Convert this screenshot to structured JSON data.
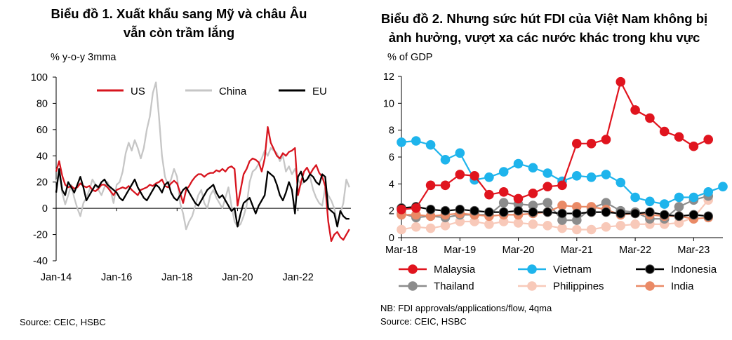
{
  "colors": {
    "us": "#d7141e",
    "china": "#c6c6c6",
    "eu": "#000000",
    "malaysia": "#e0141e",
    "vietnam": "#1eb4ec",
    "indonesia": "#000000",
    "thailand": "#8c8c8c",
    "philippines": "#f8c9b9",
    "india": "#ea8a66"
  },
  "chart_data": [
    {
      "type": "line",
      "title_lines": [
        "Biểu đồ 1. Xuất khẩu sang Mỹ và châu Âu",
        "vẫn còn trầm lắng"
      ],
      "ylabel": "% y-o-y 3mma",
      "ylim": [
        -40,
        100
      ],
      "yticks": [
        "100",
        "80",
        "60",
        "40",
        "20",
        "0",
        "-20",
        "-40"
      ],
      "xlim": [
        2014.0,
        2023.75
      ],
      "xtick_labels": [
        "Jan-14",
        "Jan-16",
        "Jan-18",
        "Jan-20",
        "Jan-22"
      ],
      "legend": [
        "US",
        "China",
        "EU"
      ],
      "legend_position": "top",
      "source": "Source: CEIC, HSBC",
      "series": [
        {
          "name": "US",
          "color_key": "us",
          "x": [
            2014.0,
            2014.1,
            2014.2,
            2014.3,
            2014.4,
            2014.5,
            2014.6,
            2014.7,
            2014.8,
            2014.9,
            2015.0,
            2015.1,
            2015.2,
            2015.3,
            2015.4,
            2015.5,
            2015.6,
            2015.7,
            2015.8,
            2015.9,
            2016.0,
            2016.1,
            2016.2,
            2016.3,
            2016.4,
            2016.5,
            2016.6,
            2016.7,
            2016.8,
            2016.9,
            2017.0,
            2017.1,
            2017.2,
            2017.3,
            2017.4,
            2017.5,
            2017.6,
            2017.7,
            2017.8,
            2017.9,
            2018.0,
            2018.1,
            2018.2,
            2018.3,
            2018.4,
            2018.5,
            2018.6,
            2018.7,
            2018.8,
            2018.9,
            2019.0,
            2019.1,
            2019.2,
            2019.3,
            2019.4,
            2019.5,
            2019.6,
            2019.7,
            2019.8,
            2019.9,
            2020.0,
            2020.1,
            2020.2,
            2020.3,
            2020.4,
            2020.5,
            2020.6,
            2020.7,
            2020.8,
            2020.9,
            2021.0,
            2021.1,
            2021.2,
            2021.3,
            2021.4,
            2021.5,
            2021.6,
            2021.7,
            2021.8,
            2021.9,
            2022.0,
            2022.1,
            2022.2,
            2022.3,
            2022.4,
            2022.5,
            2022.6,
            2022.7,
            2022.8,
            2022.9,
            2023.0,
            2023.1,
            2023.2,
            2023.3,
            2023.4,
            2023.5,
            2023.6,
            2023.7
          ],
          "y": [
            28,
            36,
            25,
            18,
            16,
            17,
            15,
            16,
            19,
            17,
            16,
            17,
            14,
            13,
            15,
            18,
            18,
            16,
            13,
            10,
            14,
            15,
            16,
            15,
            17,
            14,
            12,
            10,
            14,
            15,
            16,
            18,
            17,
            19,
            20,
            22,
            17,
            16,
            19,
            21,
            19,
            12,
            4,
            14,
            17,
            21,
            24,
            26,
            26,
            24,
            26,
            27,
            27,
            29,
            28,
            30,
            28,
            31,
            32,
            30,
            2,
            14,
            26,
            30,
            36,
            38,
            37,
            35,
            28,
            38,
            62,
            50,
            45,
            40,
            38,
            42,
            40,
            43,
            44,
            46,
            10,
            20,
            28,
            31,
            26,
            30,
            33,
            27,
            24,
            17,
            -10,
            -25,
            -20,
            -18,
            -22,
            -24,
            -20,
            -16
          ]
        },
        {
          "name": "China",
          "color_key": "china",
          "x": [
            2014.0,
            2014.1,
            2014.2,
            2014.3,
            2014.4,
            2014.5,
            2014.6,
            2014.7,
            2014.8,
            2014.9,
            2015.0,
            2015.1,
            2015.2,
            2015.3,
            2015.4,
            2015.5,
            2015.6,
            2015.7,
            2015.8,
            2015.9,
            2016.0,
            2016.1,
            2016.2,
            2016.3,
            2016.4,
            2016.5,
            2016.6,
            2016.7,
            2016.8,
            2016.9,
            2017.0,
            2017.1,
            2017.2,
            2017.3,
            2017.4,
            2017.5,
            2017.6,
            2017.7,
            2017.8,
            2017.9,
            2018.0,
            2018.1,
            2018.2,
            2018.3,
            2018.4,
            2018.5,
            2018.6,
            2018.7,
            2018.8,
            2018.9,
            2019.0,
            2019.1,
            2019.2,
            2019.3,
            2019.4,
            2019.5,
            2019.6,
            2019.7,
            2019.8,
            2019.9,
            2020.0,
            2020.1,
            2020.2,
            2020.3,
            2020.4,
            2020.5,
            2020.6,
            2020.7,
            2020.8,
            2020.9,
            2021.0,
            2021.1,
            2021.2,
            2021.3,
            2021.4,
            2021.5,
            2021.6,
            2021.7,
            2021.8,
            2021.9,
            2022.0,
            2022.1,
            2022.2,
            2022.3,
            2022.4,
            2022.5,
            2022.6,
            2022.7,
            2022.8,
            2022.9,
            2023.0,
            2023.1,
            2023.2,
            2023.3,
            2023.4,
            2023.5,
            2023.6,
            2023.7
          ],
          "y": [
            20,
            27,
            12,
            3,
            10,
            18,
            8,
            0,
            -6,
            4,
            8,
            14,
            22,
            18,
            14,
            10,
            16,
            20,
            14,
            4,
            18,
            20,
            28,
            42,
            50,
            44,
            52,
            46,
            38,
            46,
            60,
            70,
            88,
            96,
            70,
            40,
            24,
            18,
            22,
            30,
            24,
            4,
            -4,
            -16,
            -10,
            -6,
            2,
            10,
            14,
            4,
            0,
            10,
            14,
            8,
            4,
            0,
            8,
            16,
            2,
            -10,
            -14,
            -12,
            -6,
            2,
            20,
            28,
            30,
            34,
            38,
            44,
            40,
            46,
            44,
            42,
            36,
            40,
            28,
            32,
            26,
            30,
            22,
            18,
            20,
            22,
            24,
            14,
            8,
            4,
            2,
            16,
            10,
            6,
            0,
            -12,
            -4,
            4,
            22,
            16
          ]
        },
        {
          "name": "EU",
          "color_key": "eu",
          "x": [
            2014.0,
            2014.1,
            2014.2,
            2014.3,
            2014.4,
            2014.5,
            2014.6,
            2014.7,
            2014.8,
            2014.9,
            2015.0,
            2015.1,
            2015.2,
            2015.3,
            2015.4,
            2015.5,
            2015.6,
            2015.7,
            2015.8,
            2015.9,
            2016.0,
            2016.1,
            2016.2,
            2016.3,
            2016.4,
            2016.5,
            2016.6,
            2016.7,
            2016.8,
            2016.9,
            2017.0,
            2017.1,
            2017.2,
            2017.3,
            2017.4,
            2017.5,
            2017.6,
            2017.7,
            2017.8,
            2017.9,
            2018.0,
            2018.1,
            2018.2,
            2018.3,
            2018.4,
            2018.5,
            2018.6,
            2018.7,
            2018.8,
            2018.9,
            2019.0,
            2019.1,
            2019.2,
            2019.3,
            2019.4,
            2019.5,
            2019.6,
            2019.7,
            2019.8,
            2019.9,
            2020.0,
            2020.1,
            2020.2,
            2020.3,
            2020.4,
            2020.5,
            2020.6,
            2020.7,
            2020.8,
            2020.9,
            2021.0,
            2021.1,
            2021.2,
            2021.3,
            2021.4,
            2021.5,
            2021.6,
            2021.7,
            2021.8,
            2021.9,
            2022.0,
            2022.1,
            2022.2,
            2022.3,
            2022.4,
            2022.5,
            2022.6,
            2022.7,
            2022.8,
            2022.9,
            2023.0,
            2023.1,
            2023.2,
            2023.3,
            2023.4,
            2023.5,
            2023.6,
            2023.7
          ],
          "y": [
            12,
            30,
            14,
            10,
            20,
            16,
            12,
            18,
            24,
            16,
            6,
            10,
            14,
            18,
            16,
            20,
            22,
            18,
            16,
            14,
            12,
            8,
            6,
            10,
            14,
            18,
            22,
            16,
            12,
            8,
            6,
            10,
            14,
            18,
            16,
            12,
            18,
            20,
            12,
            8,
            6,
            10,
            14,
            16,
            12,
            8,
            4,
            2,
            6,
            10,
            14,
            16,
            18,
            12,
            8,
            10,
            6,
            2,
            -2,
            0,
            -14,
            -4,
            4,
            6,
            8,
            2,
            -4,
            2,
            6,
            10,
            28,
            26,
            24,
            18,
            10,
            6,
            12,
            20,
            14,
            -4,
            24,
            28,
            20,
            22,
            26,
            24,
            20,
            18,
            26,
            24,
            0,
            -2,
            -4,
            -14,
            -2,
            -6,
            -8,
            -8
          ]
        }
      ]
    },
    {
      "type": "line",
      "title_lines": [
        "Biểu đồ 2. Nhưng sức hút FDI của Việt Nam không bị",
        "ảnh hưởng, vượt xa các nước khác trong khu vực"
      ],
      "ylabel": "% of GDP",
      "ylim": [
        0,
        12
      ],
      "yticks": [
        "12",
        "10",
        "8",
        "6",
        "4",
        "2",
        "0"
      ],
      "xlim": [
        2018.0,
        2023.5
      ],
      "xtick_labels": [
        "Mar-18",
        "Mar-19",
        "Mar-20",
        "Mar-21",
        "Mar-22",
        "Mar-23"
      ],
      "legend": [
        "Malaysia",
        "Vietnam",
        "Indonesia",
        "Thailand",
        "Philippines",
        "India"
      ],
      "legend_position": "bottom",
      "note": "NB: FDI approvals/applications/flow, 4qma",
      "source": "Source: CEIC, HSBC",
      "x": [
        2018.0,
        2018.25,
        2018.5,
        2018.75,
        2019.0,
        2019.25,
        2019.5,
        2019.75,
        2020.0,
        2020.25,
        2020.5,
        2020.75,
        2021.0,
        2021.25,
        2021.5,
        2021.75,
        2022.0,
        2022.25,
        2022.5,
        2022.75,
        2023.0,
        2023.25,
        2023.5
      ],
      "series": [
        {
          "name": "Malaysia",
          "color_key": "malaysia",
          "y": [
            2.1,
            2.2,
            3.9,
            3.9,
            4.7,
            4.6,
            3.2,
            3.4,
            2.9,
            3.3,
            3.8,
            3.9,
            7.0,
            7.0,
            7.3,
            11.6,
            9.5,
            8.9,
            7.9,
            7.5,
            6.8,
            7.3,
            null
          ]
        },
        {
          "name": "Vietnam",
          "color_key": "vietnam",
          "y": [
            7.1,
            7.2,
            6.9,
            5.8,
            6.3,
            4.3,
            4.5,
            4.9,
            5.5,
            5.2,
            4.8,
            4.2,
            4.6,
            4.5,
            4.7,
            4.1,
            3.0,
            2.7,
            2.5,
            3.0,
            3.0,
            3.4,
            3.8
          ]
        },
        {
          "name": "Indonesia",
          "color_key": "indonesia",
          "y": [
            2.2,
            2.3,
            2.1,
            2.0,
            2.1,
            2.0,
            1.9,
            1.9,
            2.0,
            1.9,
            1.9,
            1.8,
            1.8,
            1.9,
            1.9,
            1.8,
            1.8,
            1.9,
            1.7,
            1.6,
            1.7,
            1.6,
            null
          ]
        },
        {
          "name": "Thailand",
          "color_key": "thailand",
          "y": [
            1.8,
            1.5,
            1.6,
            1.5,
            1.7,
            1.7,
            1.7,
            2.6,
            2.5,
            2.4,
            2.6,
            1.3,
            1.3,
            2.2,
            2.6,
            2.0,
            1.9,
            1.4,
            1.4,
            2.3,
            2.8,
            3.1,
            null
          ]
        },
        {
          "name": "Philippines",
          "color_key": "philippines",
          "y": [
            0.6,
            0.8,
            0.7,
            0.9,
            1.2,
            1.2,
            1.0,
            1.2,
            1.1,
            1.0,
            0.9,
            0.7,
            0.6,
            0.6,
            0.8,
            0.9,
            1.0,
            1.0,
            1.0,
            1.1,
            1.5,
            2.8,
            null
          ]
        },
        {
          "name": "India",
          "color_key": "india",
          "y": [
            1.7,
            1.7,
            1.6,
            1.7,
            1.8,
            1.7,
            1.6,
            1.7,
            1.7,
            1.8,
            1.9,
            2.4,
            2.3,
            2.3,
            2.1,
            1.7,
            1.8,
            1.7,
            1.6,
            1.6,
            1.4,
            1.5,
            null
          ]
        }
      ]
    }
  ]
}
